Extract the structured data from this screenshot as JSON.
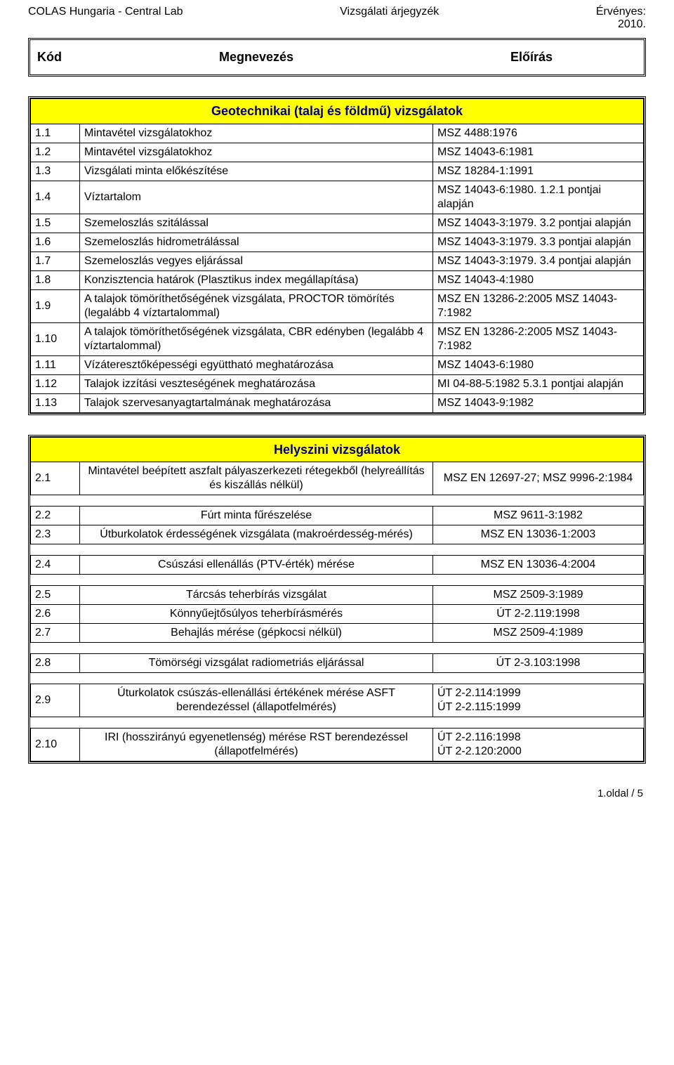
{
  "header": {
    "left": "COLAS Hungaria - Central Lab",
    "center": "Vizsgálati árjegyzék",
    "right": "Érvényes:\n2010."
  },
  "column_headers": {
    "kod": "Kód",
    "megnevezes": "Megnevezés",
    "eloiras": "Előírás"
  },
  "sections": [
    {
      "title": "Geotechnikai (talaj és földmű) vizsgálatok",
      "name_align": "left",
      "spec_align": "left",
      "rows": [
        {
          "code": "1.1",
          "name": "Mintavétel vizsgálatokhoz",
          "spec": "MSZ 4488:1976"
        },
        {
          "code": "1.2",
          "name": "Mintavétel vizsgálatokhoz",
          "spec": "MSZ 14043-6:1981"
        },
        {
          "code": "1.3",
          "name": "Vizsgálati minta előkészítése",
          "spec": "MSZ 18284-1:1991"
        },
        {
          "code": "1.4",
          "name": "Víztartalom",
          "spec": "MSZ 14043-6:1980. 1.2.1 pontjai alapján"
        },
        {
          "code": "1.5",
          "name": "Szemeloszlás szitálással",
          "spec": "MSZ 14043-3:1979. 3.2 pontjai alapján"
        },
        {
          "code": "1.6",
          "name": "Szemeloszlás hidrometrálással",
          "spec": "MSZ 14043-3:1979. 3.3 pontjai alapján"
        },
        {
          "code": "1.7",
          "name": "Szemeloszlás vegyes eljárással",
          "spec": "MSZ 14043-3:1979. 3.4 pontjai alapján"
        },
        {
          "code": "1.8",
          "name": "Konzisztencia határok (Plasztikus index megállapítása)",
          "spec": "MSZ 14043-4:1980"
        },
        {
          "code": "1.9",
          "name": "A talajok tömöríthetőségének vizsgálata, PROCTOR tömörítés                  (legalább 4 víztartalommal)",
          "spec": "MSZ EN 13286-2:2005 MSZ 14043-7:1982"
        },
        {
          "code": "1.10",
          "name": "A talajok tömöríthetőségének vizsgálata, CBR edényben                  (legalább 4 víztartalommal)",
          "spec": "MSZ EN 13286-2:2005 MSZ 14043-7:1982"
        },
        {
          "code": "1.11",
          "name": "Vízáteresztőképességi együttható meghatározása",
          "spec": "MSZ 14043-6:1980"
        },
        {
          "code": "1.12",
          "name": "Talajok izzítási veszteségének meghatározása",
          "spec": "MI 04-88-5:1982            5.3.1 pontjai alapján"
        },
        {
          "code": "1.13",
          "name": "Talajok szervesanyagtartalmának meghatározása",
          "spec": "MSZ 14043-9:1982"
        }
      ]
    },
    {
      "title": "Helyszini vizsgálatok",
      "name_align": "center",
      "spec_align": "center",
      "rows": [
        {
          "code": "2.1",
          "name": "Mintavétel beépített aszfalt pályaszerkezeti rétegekből (helyreállítás és kiszállás nélkül)",
          "spec": "MSZ EN 12697-27; MSZ 9996-2:1984",
          "gap_after": true
        },
        {
          "code": "2.2",
          "name": "Fúrt minta fűrészelése",
          "spec": "MSZ 9611-3:1982"
        },
        {
          "code": "2.3",
          "name": "Útburkolatok érdességének vizsgálata (makroérdesség-mérés)",
          "spec": "MSZ EN 13036-1:2003",
          "gap_after": true
        },
        {
          "code": "2.4",
          "name": "Csúszási ellenállás (PTV-érték) mérése",
          "spec": "MSZ EN 13036-4:2004",
          "gap_after": true
        },
        {
          "code": "2.5",
          "name": "Tárcsás teherbírás vizsgálat",
          "spec": "MSZ 2509-3:1989"
        },
        {
          "code": "2.6",
          "name": "Könnyűejtősúlyos teherbírásmérés",
          "spec": "ÚT 2-2.119:1998"
        },
        {
          "code": "2.7",
          "name": "Behajlás mérése (gépkocsi nélkül)",
          "spec": "MSZ 2509-4:1989",
          "gap_after": true
        },
        {
          "code": "2.8",
          "name": "Tömörségi vizsgálat radiometriás eljárással",
          "spec": "ÚT 2-3.103:1998",
          "gap_after": true
        },
        {
          "code": "2.9",
          "name": "Úturkolatok csúszás-ellenállási értékének mérése ASFT berendezéssel (állapotfelmérés)",
          "spec": "ÚT 2-2.114:1999\nÚT 2-2.115:1999",
          "gap_after": true,
          "spec_align": "left"
        },
        {
          "code": "2.10",
          "name": "IRI (hosszirányú egyenetlenség) mérése RST berendezéssel (állapotfelmérés)",
          "spec": "ÚT 2-2.116:1998\nÚT 2-2.120:2000",
          "spec_align": "left"
        }
      ]
    }
  ],
  "footer": "1.oldal / 5",
  "colors": {
    "section_bg": "#ffff00",
    "section_text": "#000080"
  }
}
